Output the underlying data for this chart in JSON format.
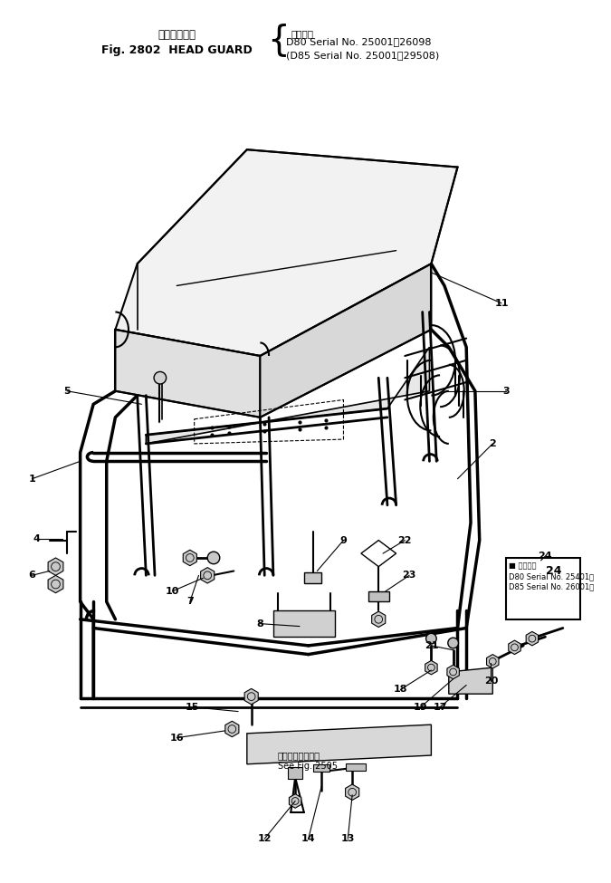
{
  "title_jp": "ヘッドガード",
  "title_en": "Fig. 2802  HEAD GUARD",
  "serial_label": "適用号機",
  "serial1": "D80 Serial No. 25001～26098",
  "serial2": "(D85 Serial No. 25001～29508)",
  "box_serial_label": "適用号機",
  "box_serial1": "D80 Serial No. 25401～",
  "box_serial2": "D85 Serial No. 26001～",
  "see_fig1": "第２５０５図参照",
  "see_fig2": "See Fig. 2505",
  "bg": "#ffffff",
  "lc": "#000000"
}
